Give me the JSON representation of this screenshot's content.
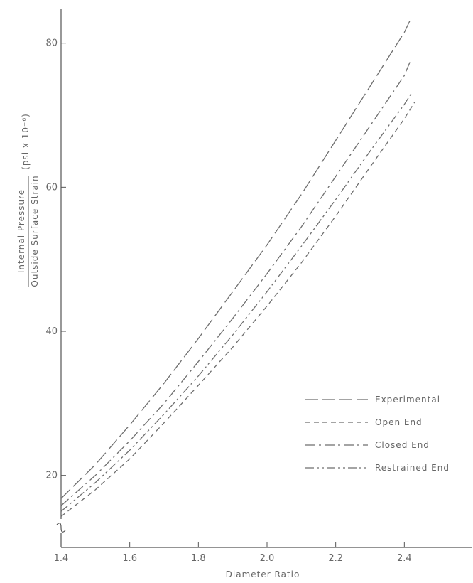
{
  "chart_data": {
    "type": "line",
    "title": "",
    "xlabel": "Diameter Ratio",
    "ylabel": {
      "numerator": "Internal Pressure",
      "denominator": "Outside Surface Strain",
      "units": "(psi x 10⁻⁶)"
    },
    "xlim": [
      1.4,
      2.6
    ],
    "ylim": [
      10,
      85
    ],
    "xticks": [
      1.4,
      1.6,
      1.8,
      2.0,
      2.2,
      2.4
    ],
    "xtick_labels": [
      "1.4",
      "1.6",
      "1.8",
      "2.0",
      "2.2",
      "2.4"
    ],
    "yticks": [
      20,
      40,
      60,
      80
    ],
    "ytick_labels": [
      "20",
      "40",
      "60",
      "80"
    ],
    "axis_break": "y-axis below 20",
    "grid": false,
    "legend_position": "bottom-right",
    "series": [
      {
        "name": "Experimental",
        "dash": "long-dash",
        "x": [
          1.4,
          1.5,
          1.6,
          1.7,
          1.8,
          1.9,
          2.0,
          2.1,
          2.2,
          2.3,
          2.4,
          2.42
        ],
        "y": [
          16.8,
          21.5,
          27.0,
          32.8,
          39.0,
          45.5,
          52.0,
          59.0,
          66.5,
          74.0,
          81.5,
          83.5
        ]
      },
      {
        "name": "Open End",
        "dash": "short-dash",
        "x": [
          1.4,
          1.5,
          1.6,
          1.7,
          1.8,
          1.9,
          2.0,
          2.1,
          2.2,
          2.3,
          2.4,
          2.43
        ],
        "y": [
          14.3,
          18.0,
          22.3,
          27.3,
          32.5,
          37.8,
          43.5,
          49.5,
          56.0,
          62.8,
          69.5,
          71.8
        ]
      },
      {
        "name": "Closed End",
        "dash": "dash-dot",
        "x": [
          1.4,
          1.5,
          1.6,
          1.7,
          1.8,
          1.9,
          2.0,
          2.1,
          2.2,
          2.3,
          2.4,
          2.42
        ],
        "y": [
          15.8,
          20.0,
          24.8,
          30.0,
          35.8,
          41.8,
          48.0,
          54.5,
          61.5,
          68.5,
          75.5,
          77.8
        ]
      },
      {
        "name": "Restrained End",
        "dash": "dash-dot-dot",
        "x": [
          1.4,
          1.5,
          1.6,
          1.7,
          1.8,
          1.9,
          2.0,
          2.1,
          2.2,
          2.3,
          2.4,
          2.42
        ],
        "y": [
          15.0,
          19.0,
          23.5,
          28.5,
          33.8,
          39.5,
          45.5,
          51.8,
          58.3,
          65.0,
          71.5,
          73.0
        ]
      }
    ]
  }
}
